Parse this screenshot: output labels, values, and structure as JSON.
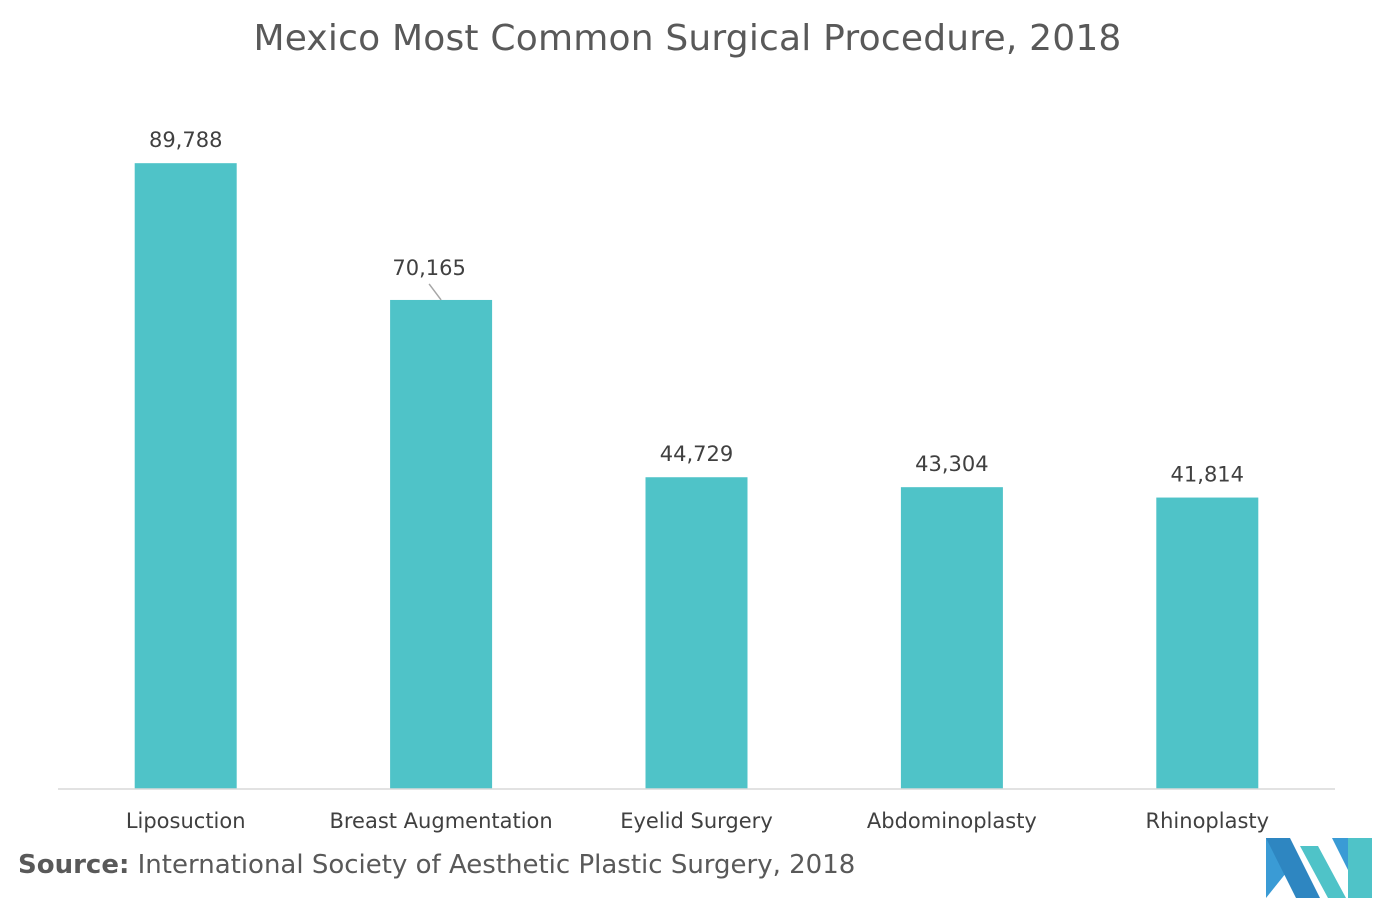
{
  "chart_data": {
    "type": "bar",
    "title": "Mexico Most Common Surgical Procedure, 2018",
    "categories": [
      "Liposuction",
      "Breast Augmentation",
      "Eyelid Surgery",
      "Abdominoplasty",
      "Rhinoplasty"
    ],
    "values": [
      89788,
      70165,
      44729,
      43304,
      41814
    ],
    "value_labels": [
      "89,788",
      "70,165",
      "44,729",
      "43,304",
      "41,814"
    ],
    "xlabel": "",
    "ylabel": "",
    "ylim": [
      0,
      100000
    ],
    "grid": false,
    "bar_color": "#4fc3c8"
  },
  "source": {
    "label": "Source:",
    "text": "International Society of Aesthetic Plastic Surgery, 2018"
  },
  "logo": {
    "icon": "company-logo",
    "colors": [
      "#3a9bd5",
      "#4fc3c8"
    ]
  }
}
